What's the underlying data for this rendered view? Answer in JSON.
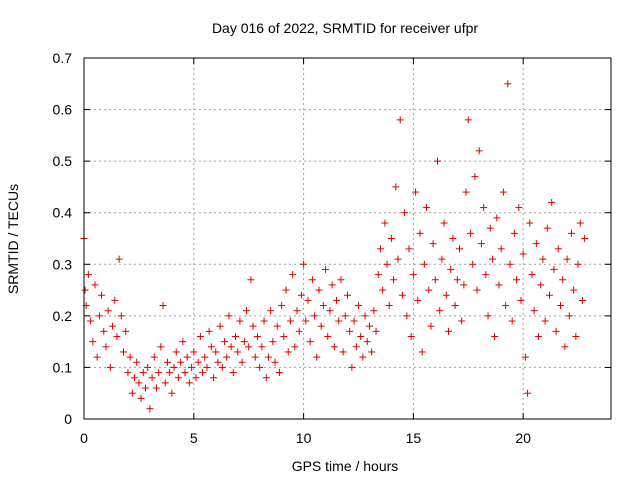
{
  "chart_data": {
    "type": "scatter",
    "title": "Day 016 of 2022, SRMTID for receiver ufpr",
    "xlabel": "GPS time / hours",
    "ylabel": "SRMTID / TECUs",
    "xlim": [
      0,
      24
    ],
    "ylim": [
      0,
      0.7
    ],
    "xticks": [
      0,
      5,
      10,
      15,
      20
    ],
    "xtick_labels": [
      "0",
      "5",
      "10",
      "15",
      "20"
    ],
    "yticks": [
      0,
      0.1,
      0.2,
      0.3,
      0.4,
      0.5,
      0.6,
      0.7
    ],
    "ytick_labels": [
      "0",
      "0.1",
      "0.2",
      "0.3",
      "0.4",
      "0.5",
      "0.6",
      "0.7"
    ],
    "grid": true,
    "marker": "plus",
    "series": [
      {
        "name": "SRMTID",
        "color": "#e00000",
        "points": [
          [
            0.0,
            0.35
          ],
          [
            0.05,
            0.25
          ],
          [
            0.1,
            0.22
          ],
          [
            0.2,
            0.28
          ],
          [
            0.3,
            0.19
          ],
          [
            0.4,
            0.15
          ],
          [
            0.5,
            0.26
          ],
          [
            0.6,
            0.12
          ],
          [
            0.7,
            0.2
          ],
          [
            0.8,
            0.24
          ],
          [
            0.9,
            0.17
          ],
          [
            1.0,
            0.14
          ],
          [
            1.1,
            0.21
          ],
          [
            1.2,
            0.1
          ],
          [
            1.3,
            0.18
          ],
          [
            1.4,
            0.23
          ],
          [
            1.5,
            0.16
          ],
          [
            1.6,
            0.31
          ],
          [
            1.7,
            0.2
          ],
          [
            1.8,
            0.13
          ],
          [
            1.9,
            0.17
          ],
          [
            2.0,
            0.09
          ],
          [
            2.1,
            0.12
          ],
          [
            2.2,
            0.05
          ],
          [
            2.3,
            0.08
          ],
          [
            2.4,
            0.11
          ],
          [
            2.5,
            0.07
          ],
          [
            2.6,
            0.04
          ],
          [
            2.7,
            0.09
          ],
          [
            2.8,
            0.06
          ],
          [
            2.9,
            0.1
          ],
          [
            3.0,
            0.02
          ],
          [
            3.1,
            0.08
          ],
          [
            3.2,
            0.12
          ],
          [
            3.3,
            0.06
          ],
          [
            3.4,
            0.09
          ],
          [
            3.5,
            0.14
          ],
          [
            3.6,
            0.22
          ],
          [
            3.7,
            0.07
          ],
          [
            3.8,
            0.11
          ],
          [
            3.9,
            0.09
          ],
          [
            4.0,
            0.05
          ],
          [
            4.1,
            0.1
          ],
          [
            4.2,
            0.13
          ],
          [
            4.3,
            0.08
          ],
          [
            4.4,
            0.11
          ],
          [
            4.5,
            0.15
          ],
          [
            4.6,
            0.09
          ],
          [
            4.7,
            0.12
          ],
          [
            4.8,
            0.07
          ],
          [
            4.9,
            0.1
          ],
          [
            5.0,
            0.13
          ],
          [
            5.1,
            0.08
          ],
          [
            5.2,
            0.11
          ],
          [
            5.3,
            0.16
          ],
          [
            5.4,
            0.09
          ],
          [
            5.5,
            0.12
          ],
          [
            5.6,
            0.1
          ],
          [
            5.7,
            0.17
          ],
          [
            5.8,
            0.14
          ],
          [
            5.9,
            0.08
          ],
          [
            6.0,
            0.13
          ],
          [
            6.1,
            0.11
          ],
          [
            6.2,
            0.18
          ],
          [
            6.3,
            0.1
          ],
          [
            6.4,
            0.15
          ],
          [
            6.5,
            0.12
          ],
          [
            6.6,
            0.2
          ],
          [
            6.7,
            0.14
          ],
          [
            6.8,
            0.09
          ],
          [
            6.9,
            0.16
          ],
          [
            7.0,
            0.13
          ],
          [
            7.1,
            0.19
          ],
          [
            7.2,
            0.11
          ],
          [
            7.3,
            0.15
          ],
          [
            7.4,
            0.21
          ],
          [
            7.5,
            0.14
          ],
          [
            7.6,
            0.27
          ],
          [
            7.7,
            0.18
          ],
          [
            7.8,
            0.12
          ],
          [
            7.9,
            0.16
          ],
          [
            8.0,
            0.1
          ],
          [
            8.1,
            0.14
          ],
          [
            8.2,
            0.19
          ],
          [
            8.3,
            0.08
          ],
          [
            8.4,
            0.12
          ],
          [
            8.5,
            0.21
          ],
          [
            8.6,
            0.15
          ],
          [
            8.7,
            0.11
          ],
          [
            8.8,
            0.18
          ],
          [
            8.9,
            0.09
          ],
          [
            9.0,
            0.22
          ],
          [
            9.1,
            0.16
          ],
          [
            9.2,
            0.25
          ],
          [
            9.3,
            0.13
          ],
          [
            9.4,
            0.19
          ],
          [
            9.5,
            0.28
          ],
          [
            9.6,
            0.14
          ],
          [
            9.7,
            0.21
          ],
          [
            9.8,
            0.17
          ],
          [
            9.9,
            0.24
          ],
          [
            10.0,
            0.3
          ],
          [
            10.1,
            0.19
          ],
          [
            10.2,
            0.23
          ],
          [
            10.3,
            0.15
          ],
          [
            10.4,
            0.27
          ],
          [
            10.5,
            0.2
          ],
          [
            10.6,
            0.12
          ],
          [
            10.7,
            0.25
          ],
          [
            10.8,
            0.18
          ],
          [
            10.9,
            0.22
          ],
          [
            11.0,
            0.29
          ],
          [
            11.1,
            0.16
          ],
          [
            11.2,
            0.21
          ],
          [
            11.3,
            0.26
          ],
          [
            11.4,
            0.14
          ],
          [
            11.5,
            0.23
          ],
          [
            11.6,
            0.19
          ],
          [
            11.7,
            0.27
          ],
          [
            11.8,
            0.13
          ],
          [
            11.9,
            0.2
          ],
          [
            12.0,
            0.24
          ],
          [
            12.1,
            0.17
          ],
          [
            12.2,
            0.1
          ],
          [
            12.3,
            0.19
          ],
          [
            12.4,
            0.14
          ],
          [
            12.5,
            0.22
          ],
          [
            12.6,
            0.16
          ],
          [
            12.7,
            0.12
          ],
          [
            12.8,
            0.2
          ],
          [
            12.9,
            0.15
          ],
          [
            13.0,
            0.18
          ],
          [
            13.1,
            0.13
          ],
          [
            13.2,
            0.21
          ],
          [
            13.3,
            0.17
          ],
          [
            13.4,
            0.28
          ],
          [
            13.5,
            0.33
          ],
          [
            13.6,
            0.25
          ],
          [
            13.7,
            0.38
          ],
          [
            13.8,
            0.3
          ],
          [
            13.9,
            0.22
          ],
          [
            14.0,
            0.35
          ],
          [
            14.1,
            0.27
          ],
          [
            14.2,
            0.45
          ],
          [
            14.3,
            0.31
          ],
          [
            14.4,
            0.58
          ],
          [
            14.5,
            0.24
          ],
          [
            14.6,
            0.4
          ],
          [
            14.7,
            0.2
          ],
          [
            14.8,
            0.33
          ],
          [
            14.9,
            0.16
          ],
          [
            15.0,
            0.28
          ],
          [
            15.1,
            0.44
          ],
          [
            15.2,
            0.23
          ],
          [
            15.3,
            0.36
          ],
          [
            15.4,
            0.13
          ],
          [
            15.5,
            0.3
          ],
          [
            15.6,
            0.41
          ],
          [
            15.7,
            0.25
          ],
          [
            15.8,
            0.18
          ],
          [
            15.9,
            0.34
          ],
          [
            16.0,
            0.27
          ],
          [
            16.1,
            0.5
          ],
          [
            16.2,
            0.21
          ],
          [
            16.3,
            0.31
          ],
          [
            16.4,
            0.38
          ],
          [
            16.5,
            0.24
          ],
          [
            16.6,
            0.17
          ],
          [
            16.7,
            0.29
          ],
          [
            16.8,
            0.35
          ],
          [
            16.9,
            0.22
          ],
          [
            17.0,
            0.27
          ],
          [
            17.1,
            0.33
          ],
          [
            17.2,
            0.19
          ],
          [
            17.3,
            0.26
          ],
          [
            17.4,
            0.44
          ],
          [
            17.5,
            0.58
          ],
          [
            17.6,
            0.36
          ],
          [
            17.7,
            0.3
          ],
          [
            17.8,
            0.47
          ],
          [
            17.9,
            0.25
          ],
          [
            18.0,
            0.52
          ],
          [
            18.1,
            0.34
          ],
          [
            18.2,
            0.41
          ],
          [
            18.3,
            0.28
          ],
          [
            18.4,
            0.2
          ],
          [
            18.5,
            0.37
          ],
          [
            18.6,
            0.31
          ],
          [
            18.7,
            0.16
          ],
          [
            18.8,
            0.39
          ],
          [
            18.9,
            0.26
          ],
          [
            19.0,
            0.33
          ],
          [
            19.1,
            0.44
          ],
          [
            19.2,
            0.22
          ],
          [
            19.3,
            0.65
          ],
          [
            19.4,
            0.3
          ],
          [
            19.5,
            0.19
          ],
          [
            19.6,
            0.36
          ],
          [
            19.7,
            0.27
          ],
          [
            19.8,
            0.41
          ],
          [
            19.9,
            0.23
          ],
          [
            20.0,
            0.32
          ],
          [
            20.1,
            0.12
          ],
          [
            20.2,
            0.05
          ],
          [
            20.3,
            0.38
          ],
          [
            20.4,
            0.28
          ],
          [
            20.5,
            0.21
          ],
          [
            20.6,
            0.34
          ],
          [
            20.7,
            0.16
          ],
          [
            20.8,
            0.26
          ],
          [
            20.9,
            0.31
          ],
          [
            21.0,
            0.19
          ],
          [
            21.1,
            0.37
          ],
          [
            21.2,
            0.24
          ],
          [
            21.3,
            0.42
          ],
          [
            21.4,
            0.29
          ],
          [
            21.5,
            0.17
          ],
          [
            21.6,
            0.33
          ],
          [
            21.7,
            0.22
          ],
          [
            21.8,
            0.27
          ],
          [
            21.9,
            0.14
          ],
          [
            22.0,
            0.31
          ],
          [
            22.1,
            0.2
          ],
          [
            22.2,
            0.36
          ],
          [
            22.3,
            0.25
          ],
          [
            22.4,
            0.16
          ],
          [
            22.5,
            0.3
          ],
          [
            22.6,
            0.38
          ],
          [
            22.7,
            0.23
          ],
          [
            22.8,
            0.35
          ]
        ]
      }
    ]
  }
}
